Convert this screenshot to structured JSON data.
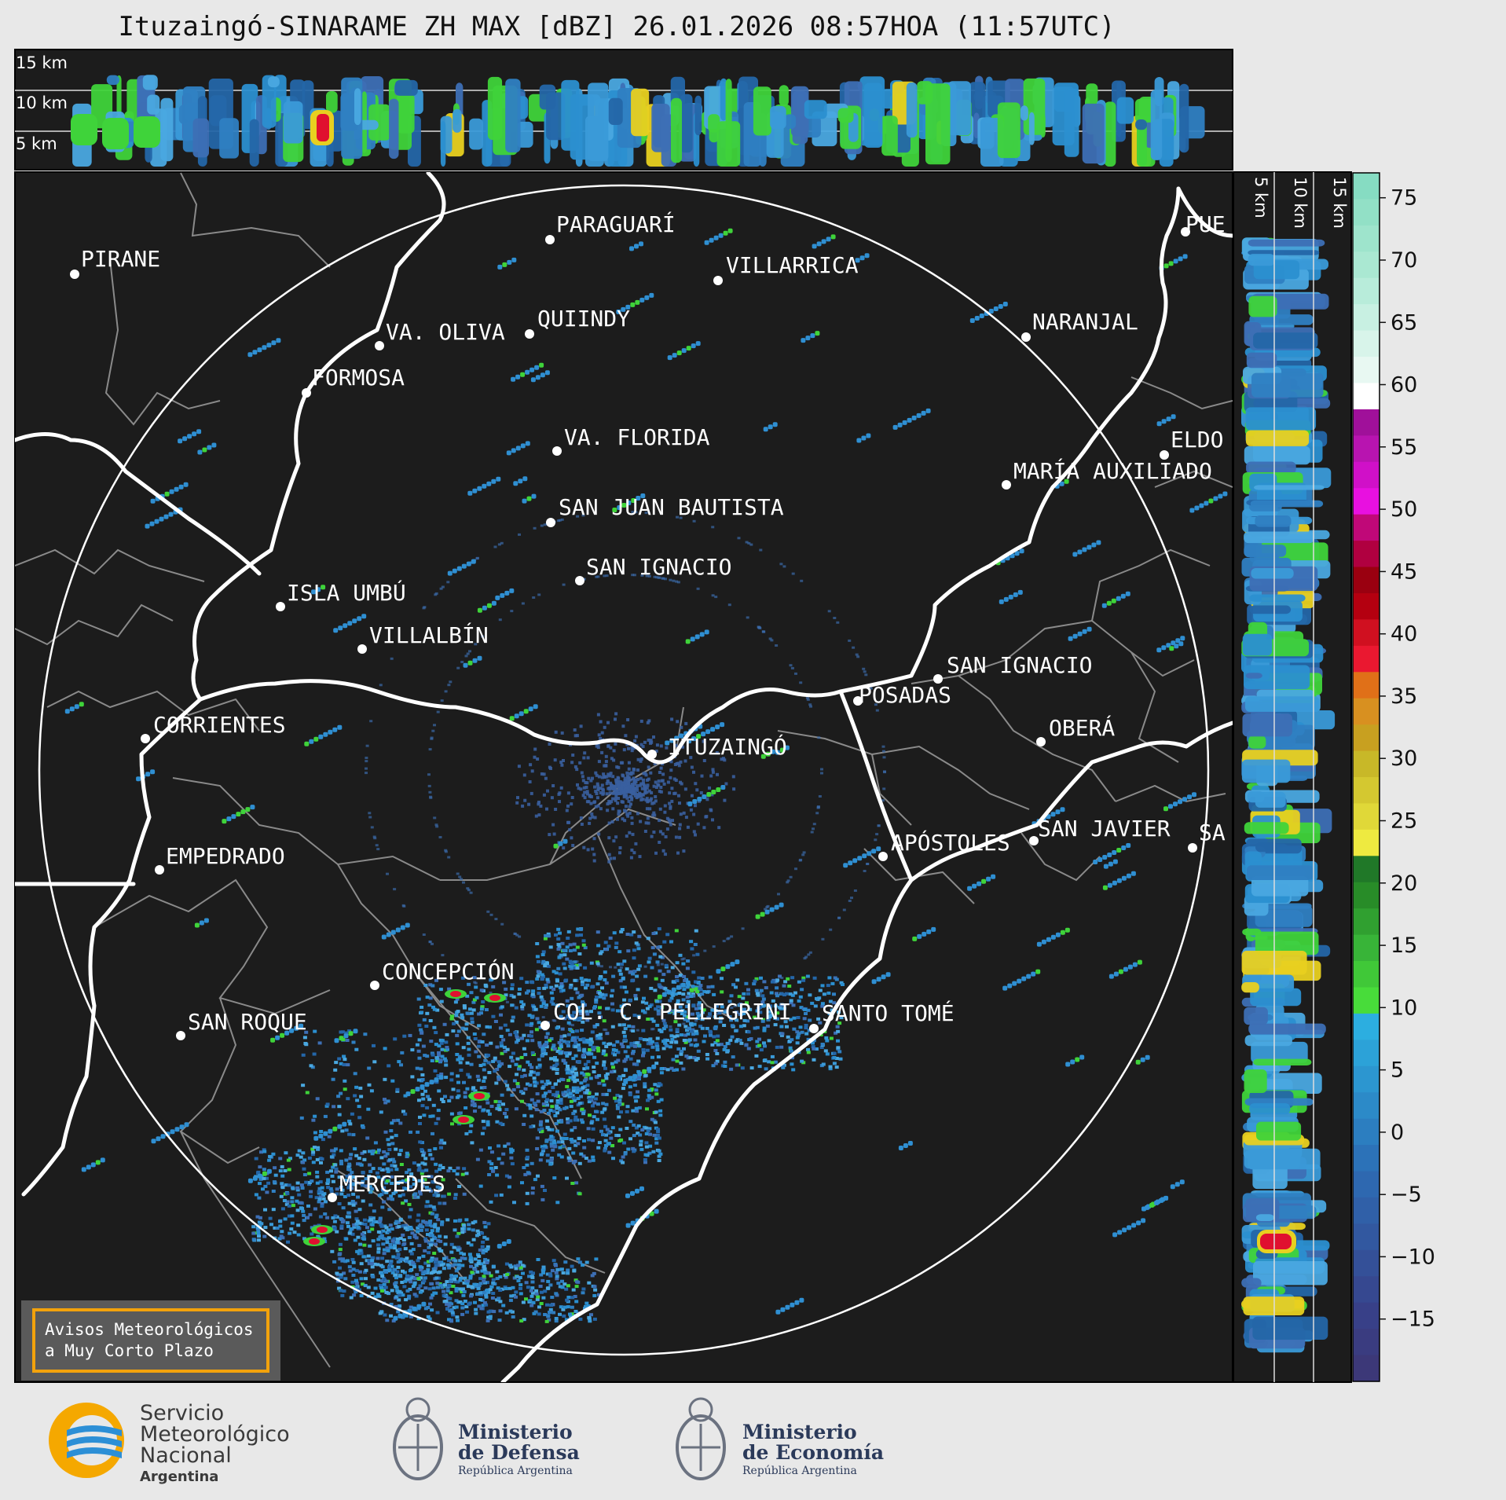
{
  "title": "Ituzaingó-SINARAME ZH MAX [dBZ] 26.01.2026 08:57HOA (11:57UTC)",
  "height_labels_top": [
    "15 km",
    "10 km",
    "5 km"
  ],
  "height_labels_side": [
    "5 km",
    "10 km",
    "15 km"
  ],
  "colorbar": {
    "ticks": [
      "75",
      "70",
      "65",
      "60",
      "55",
      "50",
      "45",
      "40",
      "35",
      "30",
      "25",
      "20",
      "15",
      "10",
      "5",
      "0",
      "−5",
      "−10",
      "−15"
    ]
  },
  "cities": [
    {
      "name": "PARAGUARÍ"
    },
    {
      "name": "PIRANE"
    },
    {
      "name": "VILLARRICA"
    },
    {
      "name": "QUIINDY"
    },
    {
      "name": "VA. OLIVA"
    },
    {
      "name": "NARANJAL"
    },
    {
      "name": "FORMOSA"
    },
    {
      "name": "VA. FLORIDA"
    },
    {
      "name": "ELDO"
    },
    {
      "name": "MARÍA AUXILIADO"
    },
    {
      "name": "SAN JUAN BAUTISTA"
    },
    {
      "name": "SAN IGNACIO"
    },
    {
      "name": "ISLA UMBÚ"
    },
    {
      "name": "VILLALBÍN"
    },
    {
      "name": "SAN IGNACIO"
    },
    {
      "name": "POSADAS"
    },
    {
      "name": "CORRIENTES"
    },
    {
      "name": "ITUZAINGÓ"
    },
    {
      "name": "OBERÁ"
    },
    {
      "name": "APÓSTOLES"
    },
    {
      "name": "SAN JAVIER"
    },
    {
      "name": "SA"
    },
    {
      "name": "EMPEDRADO"
    },
    {
      "name": "CONCEPCIÓN"
    },
    {
      "name": "COL. C. PELLEGRINI"
    },
    {
      "name": "SANTO TOMÉ"
    },
    {
      "name": "SAN ROQUE"
    },
    {
      "name": "MERCEDES"
    },
    {
      "name": "PUE"
    }
  ],
  "aviso": {
    "line1": "Avisos Meteorológicos",
    "line2": "a Muy Corto Plazo"
  },
  "footer": {
    "smn": {
      "line1": "Servicio",
      "line2": "Meteorológico",
      "line3": "Nacional",
      "line4": "Argentina"
    },
    "defensa": {
      "line1": "Ministerio",
      "line2": "de Defensa",
      "line3": "República Argentina"
    },
    "economia": {
      "line1": "Ministerio",
      "line2": "de Economía",
      "line3": "República Argentina"
    }
  },
  "colors": {
    "map_bg": "#1c1c1c",
    "rain_light": "#2b8fd0",
    "rain_mid": "#3fd33a",
    "rain_heavy": "#e0102f"
  }
}
